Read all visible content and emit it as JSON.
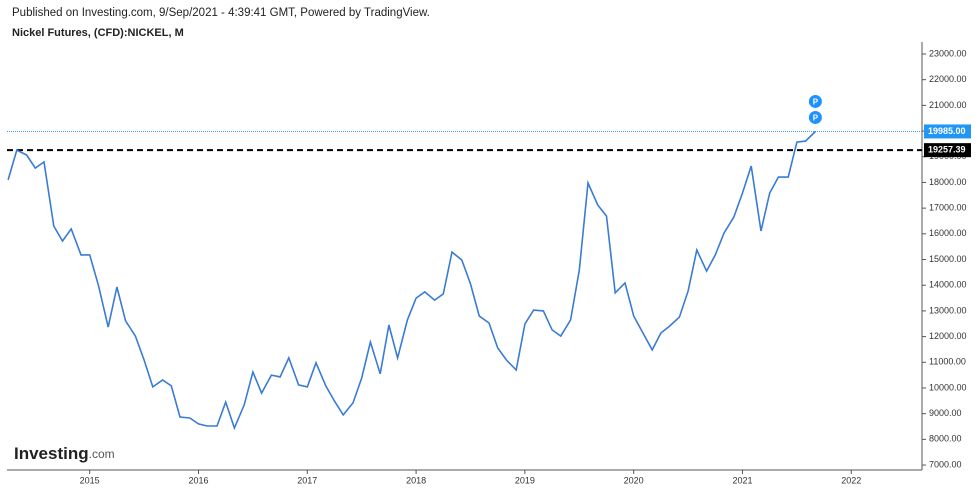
{
  "header": {
    "published": "Published on Investing.com, 9/Sep/2021 - 4:39:41 GMT, Powered by TradingView.",
    "logo": "Investing",
    "logo_suffix": ".com"
  },
  "chart_data": {
    "type": "line",
    "title": "Nickel Futures, (CFD):NICKEL, M",
    "color": "#3a7bd5",
    "x": [
      2014.25,
      2014.33,
      2014.42,
      2014.5,
      2014.58,
      2014.67,
      2014.75,
      2014.83,
      2014.92,
      2015,
      2015.08,
      2015.17,
      2015.25,
      2015.33,
      2015.42,
      2015.5,
      2015.58,
      2015.67,
      2015.75,
      2015.83,
      2015.92,
      2016,
      2016.08,
      2016.17,
      2016.25,
      2016.33,
      2016.42,
      2016.5,
      2016.58,
      2016.67,
      2016.75,
      2016.83,
      2016.92,
      2017,
      2017.08,
      2017.17,
      2017.25,
      2017.33,
      2017.42,
      2017.5,
      2017.58,
      2017.67,
      2017.75,
      2017.83,
      2017.92,
      2018,
      2018.08,
      2018.17,
      2018.25,
      2018.33,
      2018.42,
      2018.5,
      2018.58,
      2018.67,
      2018.75,
      2018.83,
      2018.92,
      2019,
      2019.08,
      2019.17,
      2019.25,
      2019.33,
      2019.42,
      2019.5,
      2019.58,
      2019.67,
      2019.75,
      2019.83,
      2019.92,
      2020,
      2020.08,
      2020.17,
      2020.25,
      2020.33,
      2020.42,
      2020.5,
      2020.58,
      2020.67,
      2020.75,
      2020.83,
      2020.92,
      2021,
      2021.08,
      2021.17,
      2021.25,
      2021.33,
      2021.42,
      2021.5,
      2021.58,
      2021.67
    ],
    "values": [
      18100,
      19260,
      19070,
      18560,
      18800,
      16300,
      15720,
      16190,
      15180,
      15180,
      14000,
      12370,
      13930,
      12610,
      12020,
      11090,
      10040,
      10310,
      10080,
      8870,
      8830,
      8600,
      8520,
      8520,
      9450,
      8440,
      9340,
      10620,
      9800,
      10500,
      10430,
      11170,
      10120,
      10040,
      10980,
      10080,
      9490,
      8950,
      9420,
      10390,
      11790,
      10550,
      12450,
      11170,
      12650,
      13500,
      13740,
      13420,
      13660,
      15290,
      14980,
      14050,
      12800,
      12530,
      11560,
      11090,
      10700,
      12490,
      13030,
      13000,
      12260,
      12020,
      12650,
      14590,
      17980,
      17120,
      16690,
      13700,
      14090,
      12800,
      12180,
      11480,
      12140,
      12410,
      12760,
      13770,
      15370,
      14550,
      15180,
      16030,
      16650,
      17590,
      18640,
      16110,
      17590,
      18210,
      18210,
      19570,
      19610,
      19985
    ],
    "xlim": [
      2014.24,
      2022.65
    ],
    "xticks": [
      2015,
      2016,
      2017,
      2018,
      2019,
      2020,
      2021,
      2022
    ],
    "ylim": [
      6807,
      23467
    ],
    "yticks": [
      {
        "value": 7000,
        "label": "7000.00"
      },
      {
        "value": 8000,
        "label": "8000.00"
      },
      {
        "value": 9000,
        "label": "9000.00"
      },
      {
        "value": 10000,
        "label": "10000.00"
      },
      {
        "value": 11000,
        "label": "11000.00"
      },
      {
        "value": 12000,
        "label": "12000.00"
      },
      {
        "value": 13000,
        "label": "13000.00"
      },
      {
        "value": 14000,
        "label": "14000.00"
      },
      {
        "value": 15000,
        "label": "15000.00"
      },
      {
        "value": 16000,
        "label": "16000.00"
      },
      {
        "value": 17000,
        "label": "17000.00"
      },
      {
        "value": 18000,
        "label": "18000.00"
      },
      {
        "value": 19000,
        "label": "19000.00"
      },
      {
        "value": 20000,
        "label": "20000.00"
      },
      {
        "value": 21000,
        "label": "21000.00"
      },
      {
        "value": 22000,
        "label": "22000.00"
      },
      {
        "value": 23000,
        "label": "23000.00"
      }
    ],
    "price_lines": [
      {
        "value": 19985,
        "label": "19985.00",
        "color": "#2196f3",
        "style": "dotted"
      },
      {
        "value": 19257.39,
        "label": "19257.39",
        "color": "#000000",
        "style": "dashed"
      }
    ],
    "markers": [
      {
        "label": "P"
      },
      {
        "label": "P"
      }
    ]
  }
}
